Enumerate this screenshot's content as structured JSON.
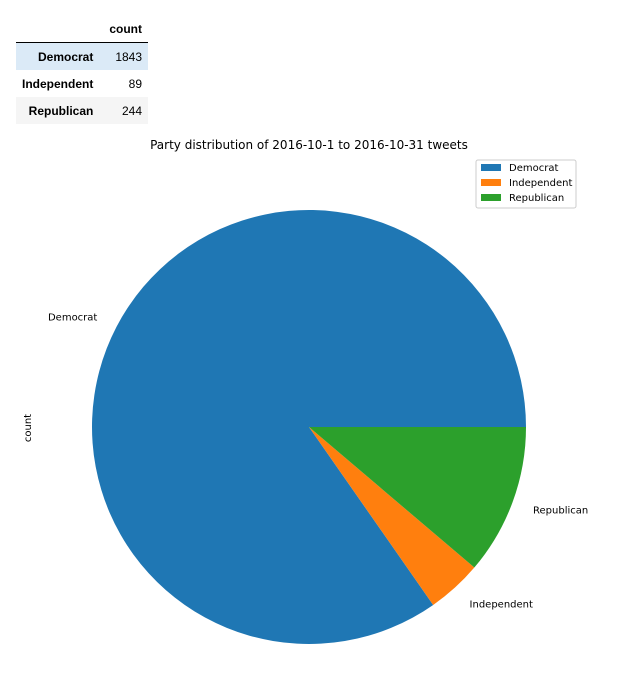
{
  "table": {
    "header": [
      "",
      "count"
    ],
    "rows": [
      {
        "label": "Democrat",
        "value": "1843"
      },
      {
        "label": "Independent",
        "value": "89"
      },
      {
        "label": "Republican",
        "value": "244"
      }
    ]
  },
  "chart_data": {
    "type": "pie",
    "title": "Party distribution of 2016-10-1 to 2016-10-31 tweets",
    "ylabel": "count",
    "categories": [
      "Democrat",
      "Independent",
      "Republican"
    ],
    "values": [
      1843,
      89,
      244
    ],
    "colors": [
      "#1f77b4",
      "#ff7f0e",
      "#2ca02c"
    ],
    "legend": {
      "position": "top-right",
      "entries": [
        "Democrat",
        "Independent",
        "Republican"
      ]
    },
    "start_angle_deg": 0,
    "direction": "counterclockwise"
  }
}
